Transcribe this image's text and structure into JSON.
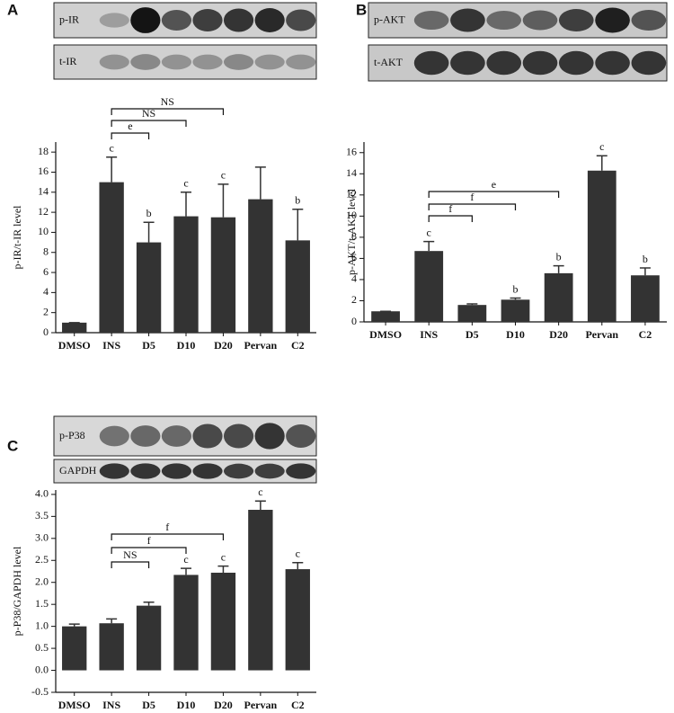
{
  "chart_data": [
    {
      "type": "bar",
      "panel": "A",
      "blots": [
        "p-IR",
        "t-IR"
      ],
      "y_label": "p-IR/t-IR level",
      "categories": [
        "DMSO",
        "INS",
        "D5",
        "D10",
        "D20",
        "Pervan",
        "C2"
      ],
      "values": [
        1.0,
        15.0,
        9.0,
        11.6,
        11.5,
        13.3,
        9.2
      ],
      "errors": [
        0,
        2.5,
        2.0,
        2.4,
        3.3,
        3.2,
        3.1
      ],
      "sig_labels": [
        null,
        "c",
        "b",
        "c",
        "c",
        null,
        "b"
      ],
      "brackets": [
        {
          "from": "INS",
          "to": "D5",
          "label": "e"
        },
        {
          "from": "INS",
          "to": "D10",
          "label": "NS"
        },
        {
          "from": "INS",
          "to": "D20",
          "label": "NS"
        }
      ],
      "color": "#333333",
      "ylim": [
        0,
        19
      ],
      "yticks": [
        0,
        2,
        4,
        6,
        8,
        10,
        12,
        14,
        16,
        18
      ]
    },
    {
      "type": "bar",
      "panel": "B",
      "blots": [
        "p-AKT",
        "t-AKT"
      ],
      "y_label": "p-AKT/t-AKT level",
      "categories": [
        "DMSO",
        "INS",
        "D5",
        "D10",
        "D20",
        "Pervan",
        "C2"
      ],
      "values": [
        1.0,
        6.7,
        1.6,
        2.1,
        4.6,
        14.3,
        4.4
      ],
      "errors": [
        0,
        0.9,
        0.1,
        0.15,
        0.7,
        1.4,
        0.7
      ],
      "sig_labels": [
        null,
        "c",
        null,
        "b",
        "b",
        "c",
        "b"
      ],
      "brackets": [
        {
          "from": "INS",
          "to": "D5",
          "label": "f"
        },
        {
          "from": "INS",
          "to": "D10",
          "label": "f"
        },
        {
          "from": "INS",
          "to": "D20",
          "label": "e"
        }
      ],
      "color": "#333333",
      "ylim": [
        0,
        17
      ],
      "yticks": [
        0,
        2,
        4,
        6,
        8,
        10,
        12,
        14,
        16
      ]
    },
    {
      "type": "bar",
      "panel": "C",
      "blots": [
        "p-P38",
        "GAPDH"
      ],
      "y_label": "p-P38/GAPDH level",
      "categories": [
        "DMSO",
        "INS",
        "D5",
        "D10",
        "D20",
        "Pervan",
        "C2"
      ],
      "values": [
        1.0,
        1.07,
        1.47,
        2.17,
        2.22,
        3.65,
        2.3
      ],
      "errors": [
        0.05,
        0.1,
        0.08,
        0.15,
        0.15,
        0.2,
        0.15
      ],
      "sig_labels": [
        null,
        null,
        null,
        "c",
        "c",
        "c",
        "c"
      ],
      "brackets": [
        {
          "from": "INS",
          "to": "D5",
          "label": "NS"
        },
        {
          "from": "INS",
          "to": "D10",
          "label": "f"
        },
        {
          "from": "INS",
          "to": "D20",
          "label": "f"
        }
      ],
      "color": "#333333",
      "ylim": [
        -0.5,
        4.1
      ],
      "yticks": [
        -0.5,
        {
          "value": 0,
          "label": "0.0"
        },
        0.5,
        {
          "value": 1,
          "label": "1.0"
        },
        1.5,
        {
          "value": 2,
          "label": "2.0"
        },
        2.5,
        {
          "value": 3,
          "label": "3.0"
        },
        3.5,
        {
          "value": 4,
          "label": "4.0"
        }
      ]
    }
  ]
}
